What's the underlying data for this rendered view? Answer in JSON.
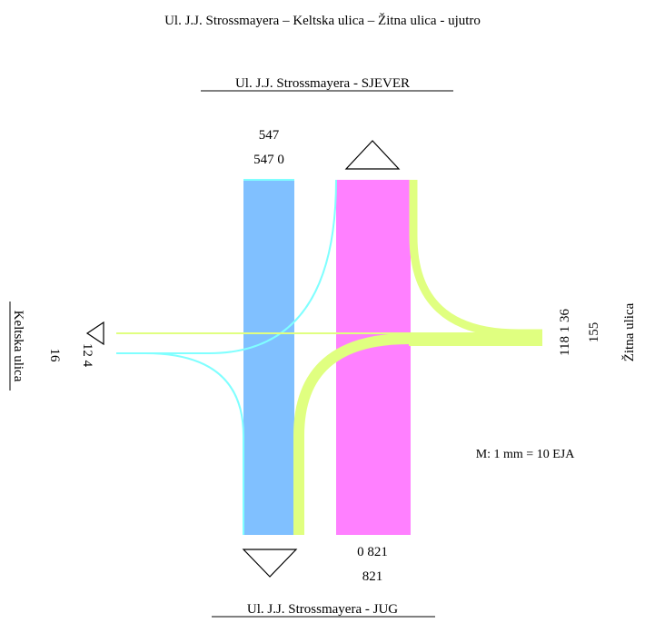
{
  "title": "Ul. J.J. Strossmayera – Keltska ulica – Žitna ulica - ujutro",
  "approaches": {
    "north": {
      "label": "Ul. J.J. Strossmayera - SJEVER",
      "total": "547",
      "split": "547 0"
    },
    "south": {
      "label": "Ul. J.J. Strossmayera - JUG",
      "total": "821",
      "split": "0 821"
    },
    "west": {
      "label": "Keltska ulica",
      "total": "16",
      "split": "12 4"
    },
    "east": {
      "label": "Žitna ulica",
      "total": "155",
      "split": "118 1 36"
    }
  },
  "scale": "M: 1 mm = 10 EJA",
  "colors": {
    "north_south_flow": "#80c0ff",
    "south_north_flow": "#ff80ff",
    "west_flow": "#80ffff",
    "east_flow": "#e0ff80",
    "arrow_stroke": "#000000"
  }
}
